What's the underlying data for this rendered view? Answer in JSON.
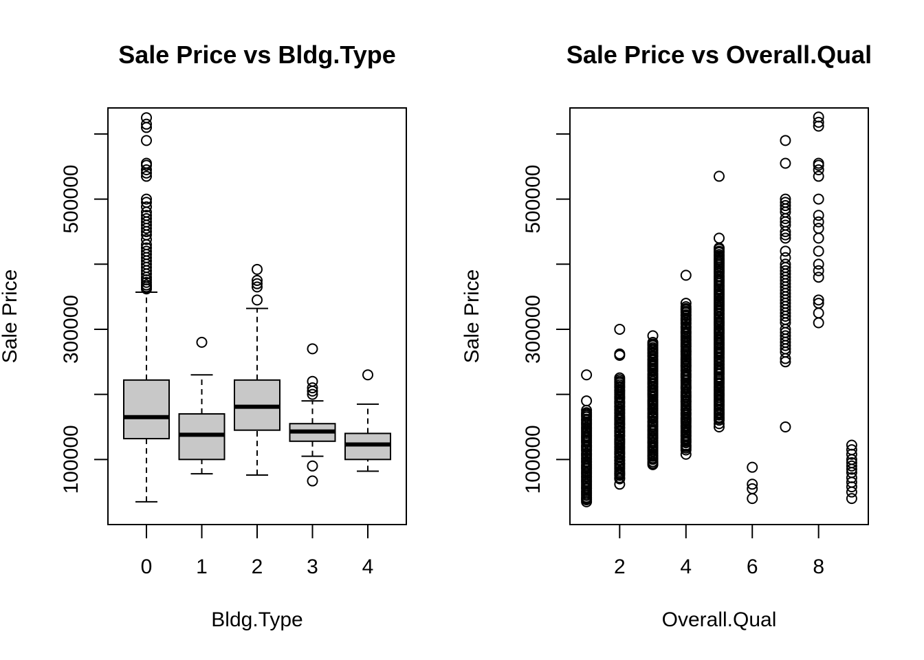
{
  "chart_data": [
    {
      "type": "boxplot",
      "title": "Sale Price vs Bldg.Type",
      "xlabel": "Bldg.Type",
      "ylabel": "Sale Price",
      "ylim": [
        0,
        640000
      ],
      "x_ticks": [
        0,
        1,
        2,
        3,
        4
      ],
      "y_ticks": [
        100000,
        200000,
        300000,
        400000,
        500000,
        600000
      ],
      "y_tick_labels": [
        "100000",
        "",
        "300000",
        "",
        "500000",
        ""
      ],
      "categories": [
        "0",
        "1",
        "2",
        "3",
        "4"
      ],
      "boxes": [
        {
          "category": "0",
          "whisker_low": 35000,
          "q1": 132000,
          "median": 165000,
          "q3": 222000,
          "whisker_high": 357000,
          "outliers": [
            362000,
            365000,
            368000,
            372000,
            376000,
            380000,
            385000,
            390000,
            395000,
            400000,
            405000,
            410000,
            415000,
            420000,
            425000,
            430000,
            438000,
            445000,
            450000,
            455000,
            460000,
            465000,
            470000,
            475000,
            480000,
            488000,
            495000,
            500000,
            535000,
            540000,
            545000,
            552000,
            555000,
            590000,
            610000,
            615000,
            625000
          ]
        },
        {
          "category": "1",
          "whisker_low": 78000,
          "q1": 100000,
          "median": 138000,
          "q3": 170000,
          "whisker_high": 230000,
          "outliers": [
            280000
          ]
        },
        {
          "category": "2",
          "whisker_low": 76000,
          "q1": 145000,
          "median": 181000,
          "q3": 222000,
          "whisker_high": 332000,
          "outliers": [
            345000,
            365000,
            370000,
            375000,
            392000
          ]
        },
        {
          "category": "3",
          "whisker_low": 105000,
          "q1": 128000,
          "median": 143000,
          "q3": 155000,
          "whisker_high": 190000,
          "outliers": [
            67000,
            90000,
            200000,
            205000,
            210000,
            220000,
            270000
          ]
        },
        {
          "category": "4",
          "whisker_low": 82000,
          "q1": 100000,
          "median": 123000,
          "q3": 140000,
          "whisker_high": 185000,
          "outliers": [
            230000
          ]
        }
      ]
    },
    {
      "type": "scatter",
      "title": "Sale Price vs Overall.Qual",
      "xlabel": "Overall.Qual",
      "ylabel": "Sale Price",
      "xlim": [
        0.5,
        9.5
      ],
      "ylim": [
        0,
        640000
      ],
      "x_ticks": [
        2,
        4,
        6,
        8
      ],
      "y_ticks": [
        100000,
        200000,
        300000,
        400000,
        500000,
        600000
      ],
      "y_tick_labels": [
        "100000",
        "",
        "300000",
        "",
        "500000",
        ""
      ],
      "groups": [
        {
          "x": 1,
          "range": [
            40000,
            175000
          ],
          "extra": [
            35000,
            38000,
            190000,
            230000
          ]
        },
        {
          "x": 2,
          "range": [
            70000,
            225000
          ],
          "extra": [
            62000,
            260000,
            262000,
            300000
          ]
        },
        {
          "x": 3,
          "range": [
            92000,
            280000
          ],
          "extra": [
            290000
          ]
        },
        {
          "x": 4,
          "range": [
            115000,
            335000
          ],
          "extra": [
            108000,
            340000,
            383000
          ]
        },
        {
          "x": 5,
          "range": [
            160000,
            425000
          ],
          "extra": [
            150000,
            155000,
            440000,
            535000
          ]
        },
        {
          "x": 6,
          "range": null,
          "extra": [
            40000,
            55000,
            62000,
            88000
          ]
        },
        {
          "x": 7,
          "range": null,
          "extra": [
            150000,
            250000,
            255000,
            265000,
            270000,
            275000,
            280000,
            285000,
            290000,
            295000,
            300000,
            310000,
            315000,
            320000,
            325000,
            330000,
            335000,
            340000,
            345000,
            350000,
            355000,
            360000,
            365000,
            370000,
            375000,
            380000,
            385000,
            390000,
            395000,
            400000,
            410000,
            420000,
            440000,
            445000,
            450000,
            460000,
            465000,
            470000,
            480000,
            485000,
            490000,
            495000,
            500000,
            555000,
            590000
          ]
        },
        {
          "x": 8,
          "range": null,
          "extra": [
            310000,
            325000,
            340000,
            345000,
            380000,
            390000,
            400000,
            420000,
            440000,
            455000,
            465000,
            475000,
            500000,
            535000,
            545000,
            552000,
            555000,
            612000,
            618000,
            626000
          ]
        },
        {
          "x": 9,
          "range": null,
          "extra": [
            40000,
            50000,
            58000,
            65000,
            72000,
            80000,
            85000,
            90000,
            95000,
            100000,
            108000,
            115000,
            122000
          ]
        }
      ]
    }
  ]
}
